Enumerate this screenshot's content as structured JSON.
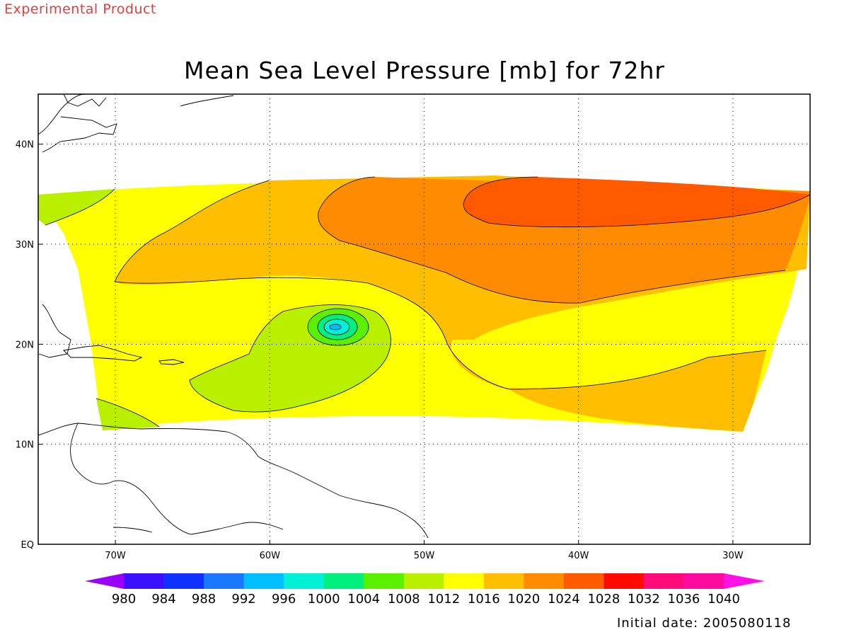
{
  "banner": "Experimental Product",
  "title": "Mean Sea Level Pressure [mb] for 72hr",
  "initial_date": "Initial date: 2005080118",
  "map": {
    "lon_range": [
      -75,
      -25
    ],
    "lat_range": [
      0,
      45
    ],
    "lon_ticks": [
      {
        "value": -70,
        "label": "70W"
      },
      {
        "value": -60,
        "label": "60W"
      },
      {
        "value": -50,
        "label": "50W"
      },
      {
        "value": -40,
        "label": "40W"
      },
      {
        "value": -30,
        "label": "30W"
      }
    ],
    "lat_ticks": [
      {
        "value": 0,
        "label": "EQ"
      },
      {
        "value": 10,
        "label": "10N"
      },
      {
        "value": 20,
        "label": "20N"
      },
      {
        "value": 30,
        "label": "30N"
      },
      {
        "value": 40,
        "label": "40N"
      }
    ],
    "grid": "dotted",
    "low_center": {
      "lon": -56,
      "lat": 21.5
    }
  },
  "colorbar": {
    "labels": [
      "980",
      "984",
      "988",
      "992",
      "996",
      "1000",
      "1004",
      "1008",
      "1012",
      "1016",
      "1020",
      "1024",
      "1028",
      "1032",
      "1036",
      "1040"
    ],
    "colors": [
      "#9a00ff",
      "#3a10ff",
      "#1030ff",
      "#1a78ff",
      "#00bfff",
      "#00f0d8",
      "#00f080",
      "#5af000",
      "#b8f000",
      "#ffff00",
      "#ffbe00",
      "#ff8c00",
      "#ff5a00",
      "#ff0a00",
      "#ff0a78",
      "#ff0aa0",
      "#ff10e6"
    ]
  }
}
